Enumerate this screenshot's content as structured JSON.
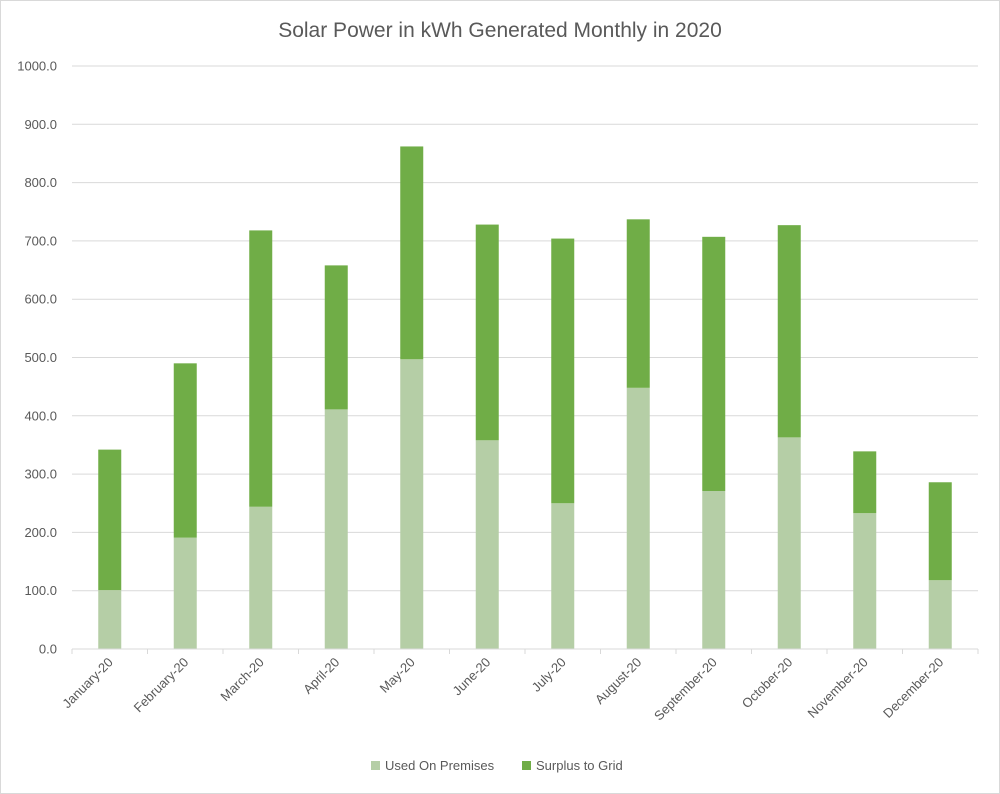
{
  "chart_data": {
    "type": "bar",
    "stacked": true,
    "title": "Solar Power in kWh Generated Monthly in 2020",
    "xlabel": "",
    "ylabel": "",
    "ylim": [
      0,
      1000
    ],
    "yticks": [
      "0.0",
      "100.0",
      "200.0",
      "300.0",
      "400.0",
      "500.0",
      "600.0",
      "700.0",
      "800.0",
      "900.0",
      "1000.0"
    ],
    "grid": true,
    "legend_position": "bottom",
    "categories": [
      "January-20",
      "February-20",
      "March-20",
      "April-20",
      "May-20",
      "June-20",
      "July-20",
      "August-20",
      "September-20",
      "October-20",
      "November-20",
      "December-20"
    ],
    "series": [
      {
        "name": "Used On Premises",
        "color": "#b5cea6",
        "values": [
          101,
          191,
          244,
          411,
          497,
          358,
          250,
          448,
          271,
          363,
          233,
          118
        ]
      },
      {
        "name": "Surplus to Grid",
        "color": "#70ad47",
        "values": [
          241,
          299,
          474,
          247,
          365,
          370,
          454,
          289,
          436,
          364,
          106,
          168
        ]
      }
    ]
  }
}
